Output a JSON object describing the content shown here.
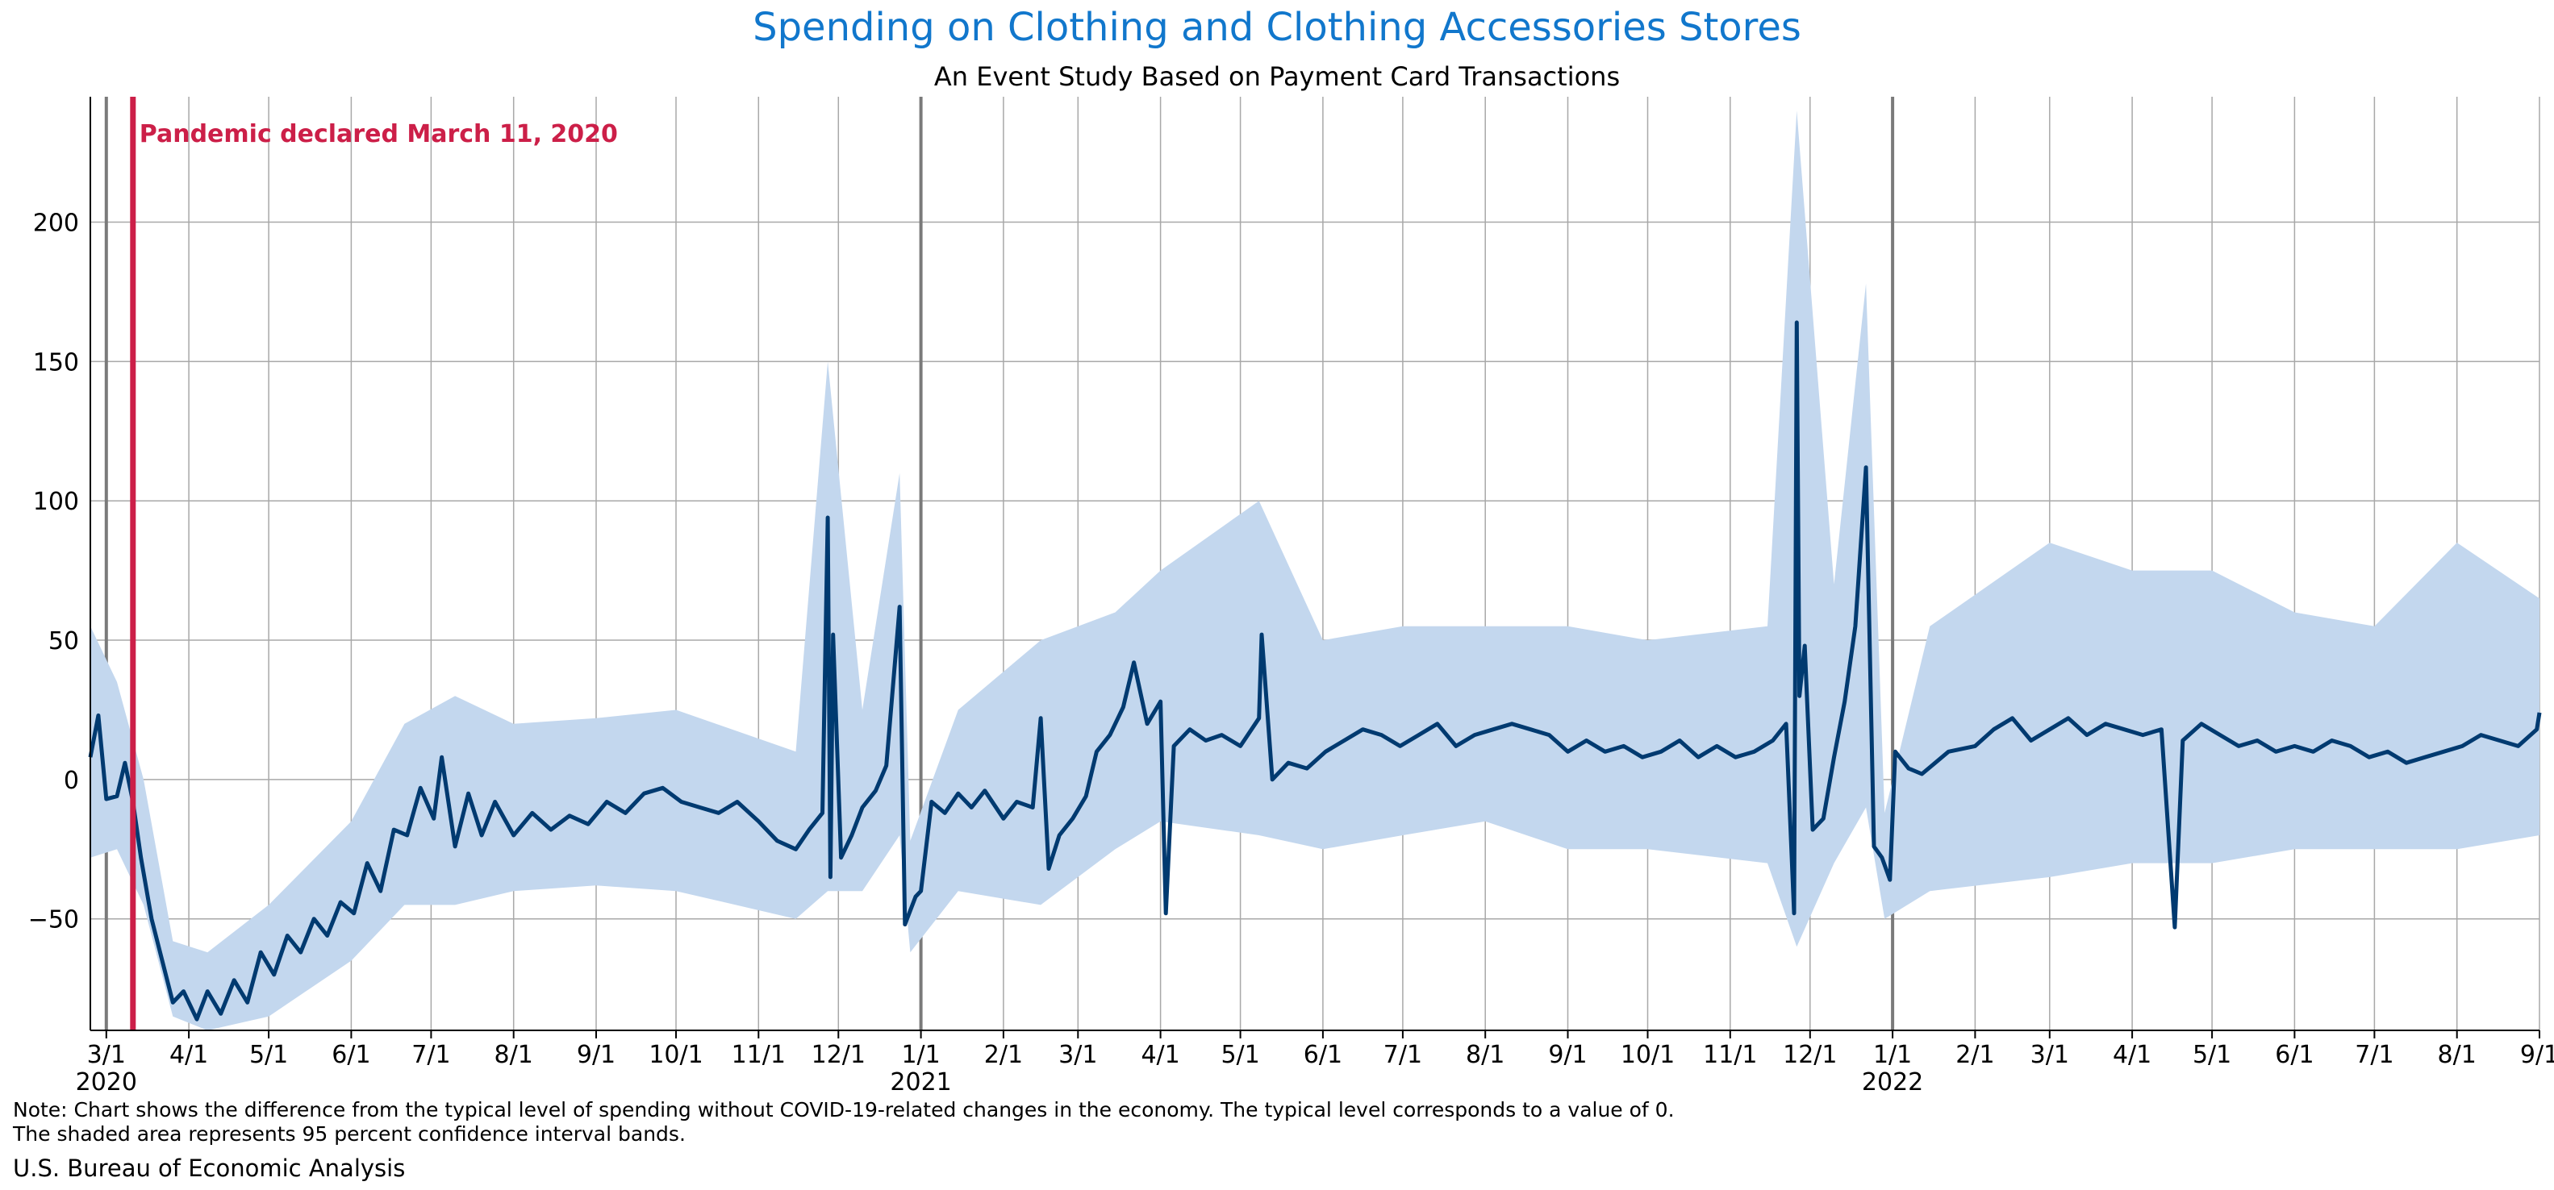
{
  "chart_data": {
    "type": "line",
    "title": "Spending on Clothing and Clothing Accessories Stores",
    "subtitle": "An Event Study Based on Payment Card Transactions",
    "xlabel": "",
    "ylabel": "",
    "x_range": [
      "2020-02-24",
      "2022-09-01"
    ],
    "ylim": [
      -90,
      245
    ],
    "y_ticks": [
      -50,
      0,
      50,
      100,
      150,
      200
    ],
    "grid": true,
    "legend": "none",
    "x_ticks": [
      {
        "date": "2020-03-01",
        "label": "3/1",
        "year": "2020"
      },
      {
        "date": "2020-04-01",
        "label": "4/1"
      },
      {
        "date": "2020-05-01",
        "label": "5/1"
      },
      {
        "date": "2020-06-01",
        "label": "6/1"
      },
      {
        "date": "2020-07-01",
        "label": "7/1"
      },
      {
        "date": "2020-08-01",
        "label": "8/1"
      },
      {
        "date": "2020-09-01",
        "label": "9/1"
      },
      {
        "date": "2020-10-01",
        "label": "10/1"
      },
      {
        "date": "2020-11-01",
        "label": "11/1"
      },
      {
        "date": "2020-12-01",
        "label": "12/1"
      },
      {
        "date": "2021-01-01",
        "label": "1/1",
        "year": "2021"
      },
      {
        "date": "2021-02-01",
        "label": "2/1"
      },
      {
        "date": "2021-03-01",
        "label": "3/1"
      },
      {
        "date": "2021-04-01",
        "label": "4/1"
      },
      {
        "date": "2021-05-01",
        "label": "5/1"
      },
      {
        "date": "2021-06-01",
        "label": "6/1"
      },
      {
        "date": "2021-07-01",
        "label": "7/1"
      },
      {
        "date": "2021-08-01",
        "label": "8/1"
      },
      {
        "date": "2021-09-01",
        "label": "9/1"
      },
      {
        "date": "2021-10-01",
        "label": "10/1"
      },
      {
        "date": "2021-11-01",
        "label": "11/1"
      },
      {
        "date": "2021-12-01",
        "label": "12/1"
      },
      {
        "date": "2022-01-01",
        "label": "1/1",
        "year": "2022"
      },
      {
        "date": "2022-02-01",
        "label": "2/1"
      },
      {
        "date": "2022-03-01",
        "label": "3/1"
      },
      {
        "date": "2022-04-01",
        "label": "4/1"
      },
      {
        "date": "2022-05-01",
        "label": "5/1"
      },
      {
        "date": "2022-06-01",
        "label": "6/1"
      },
      {
        "date": "2022-07-01",
        "label": "7/1"
      },
      {
        "date": "2022-08-01",
        "label": "8/1"
      },
      {
        "date": "2022-09-01",
        "label": "9/1"
      }
    ],
    "annotation": {
      "date": "2020-03-11",
      "text": "Pandemic declared March 11, 2020"
    },
    "series": [
      {
        "type": "line",
        "points": [
          [
            "2020-02-24",
            8
          ],
          [
            "2020-02-27",
            23
          ],
          [
            "2020-03-01",
            -7
          ],
          [
            "2020-03-05",
            -6
          ],
          [
            "2020-03-08",
            6
          ],
          [
            "2020-03-11",
            -8
          ],
          [
            "2020-03-14",
            -28
          ],
          [
            "2020-03-18",
            -50
          ],
          [
            "2020-03-22",
            -65
          ],
          [
            "2020-03-26",
            -80
          ],
          [
            "2020-03-30",
            -76
          ],
          [
            "2020-04-04",
            -86
          ],
          [
            "2020-04-08",
            -76
          ],
          [
            "2020-04-13",
            -84
          ],
          [
            "2020-04-18",
            -72
          ],
          [
            "2020-04-23",
            -80
          ],
          [
            "2020-04-28",
            -62
          ],
          [
            "2020-05-03",
            -70
          ],
          [
            "2020-05-08",
            -56
          ],
          [
            "2020-05-13",
            -62
          ],
          [
            "2020-05-18",
            -50
          ],
          [
            "2020-05-23",
            -56
          ],
          [
            "2020-05-28",
            -44
          ],
          [
            "2020-06-02",
            -48
          ],
          [
            "2020-06-07",
            -30
          ],
          [
            "2020-06-12",
            -40
          ],
          [
            "2020-06-17",
            -18
          ],
          [
            "2020-06-22",
            -20
          ],
          [
            "2020-06-27",
            -3
          ],
          [
            "2020-07-02",
            -14
          ],
          [
            "2020-07-05",
            8
          ],
          [
            "2020-07-10",
            -24
          ],
          [
            "2020-07-15",
            -5
          ],
          [
            "2020-07-20",
            -20
          ],
          [
            "2020-07-25",
            -8
          ],
          [
            "2020-08-01",
            -20
          ],
          [
            "2020-08-08",
            -12
          ],
          [
            "2020-08-15",
            -18
          ],
          [
            "2020-08-22",
            -13
          ],
          [
            "2020-08-29",
            -16
          ],
          [
            "2020-09-05",
            -8
          ],
          [
            "2020-09-12",
            -12
          ],
          [
            "2020-09-19",
            -5
          ],
          [
            "2020-09-26",
            -3
          ],
          [
            "2020-10-03",
            -8
          ],
          [
            "2020-10-10",
            -10
          ],
          [
            "2020-10-17",
            -12
          ],
          [
            "2020-10-24",
            -8
          ],
          [
            "2020-11-01",
            -15
          ],
          [
            "2020-11-08",
            -22
          ],
          [
            "2020-11-15",
            -25
          ],
          [
            "2020-11-20",
            -18
          ],
          [
            "2020-11-25",
            -12
          ],
          [
            "2020-11-27",
            94
          ],
          [
            "2020-11-28",
            -35
          ],
          [
            "2020-11-29",
            52
          ],
          [
            "2020-12-02",
            -28
          ],
          [
            "2020-12-06",
            -20
          ],
          [
            "2020-12-10",
            -10
          ],
          [
            "2020-12-15",
            -4
          ],
          [
            "2020-12-19",
            5
          ],
          [
            "2020-12-24",
            62
          ],
          [
            "2020-12-26",
            -52
          ],
          [
            "2020-12-30",
            -42
          ],
          [
            "2021-01-01",
            -40
          ],
          [
            "2021-01-05",
            -8
          ],
          [
            "2021-01-10",
            -12
          ],
          [
            "2021-01-15",
            -5
          ],
          [
            "2021-01-20",
            -10
          ],
          [
            "2021-01-25",
            -4
          ],
          [
            "2021-02-01",
            -14
          ],
          [
            "2021-02-06",
            -8
          ],
          [
            "2021-02-12",
            -10
          ],
          [
            "2021-02-15",
            22
          ],
          [
            "2021-02-18",
            -32
          ],
          [
            "2021-02-22",
            -20
          ],
          [
            "2021-02-27",
            -14
          ],
          [
            "2021-03-04",
            -6
          ],
          [
            "2021-03-08",
            10
          ],
          [
            "2021-03-13",
            16
          ],
          [
            "2021-03-18",
            26
          ],
          [
            "2021-03-22",
            42
          ],
          [
            "2021-03-27",
            20
          ],
          [
            "2021-04-01",
            28
          ],
          [
            "2021-04-03",
            -48
          ],
          [
            "2021-04-06",
            12
          ],
          [
            "2021-04-12",
            18
          ],
          [
            "2021-04-18",
            14
          ],
          [
            "2021-04-24",
            16
          ],
          [
            "2021-05-01",
            12
          ],
          [
            "2021-05-08",
            22
          ],
          [
            "2021-05-09",
            52
          ],
          [
            "2021-05-13",
            0
          ],
          [
            "2021-05-19",
            6
          ],
          [
            "2021-05-26",
            4
          ],
          [
            "2021-06-02",
            10
          ],
          [
            "2021-06-09",
            14
          ],
          [
            "2021-06-16",
            18
          ],
          [
            "2021-06-23",
            16
          ],
          [
            "2021-06-30",
            12
          ],
          [
            "2021-07-07",
            16
          ],
          [
            "2021-07-14",
            20
          ],
          [
            "2021-07-21",
            12
          ],
          [
            "2021-07-28",
            16
          ],
          [
            "2021-08-04",
            18
          ],
          [
            "2021-08-11",
            20
          ],
          [
            "2021-08-18",
            18
          ],
          [
            "2021-08-25",
            16
          ],
          [
            "2021-09-01",
            10
          ],
          [
            "2021-09-08",
            14
          ],
          [
            "2021-09-15",
            10
          ],
          [
            "2021-09-22",
            12
          ],
          [
            "2021-09-29",
            8
          ],
          [
            "2021-10-06",
            10
          ],
          [
            "2021-10-13",
            14
          ],
          [
            "2021-10-20",
            8
          ],
          [
            "2021-10-27",
            12
          ],
          [
            "2021-11-03",
            8
          ],
          [
            "2021-11-10",
            10
          ],
          [
            "2021-11-17",
            14
          ],
          [
            "2021-11-22",
            20
          ],
          [
            "2021-11-25",
            -48
          ],
          [
            "2021-11-26",
            164
          ],
          [
            "2021-11-27",
            30
          ],
          [
            "2021-11-29",
            48
          ],
          [
            "2021-12-02",
            -18
          ],
          [
            "2021-12-06",
            -14
          ],
          [
            "2021-12-10",
            8
          ],
          [
            "2021-12-14",
            28
          ],
          [
            "2021-12-18",
            55
          ],
          [
            "2021-12-22",
            112
          ],
          [
            "2021-12-25",
            -24
          ],
          [
            "2021-12-28",
            -28
          ],
          [
            "2021-12-31",
            -36
          ],
          [
            "2022-01-02",
            10
          ],
          [
            "2022-01-07",
            4
          ],
          [
            "2022-01-12",
            2
          ],
          [
            "2022-01-17",
            6
          ],
          [
            "2022-01-22",
            10
          ],
          [
            "2022-02-01",
            12
          ],
          [
            "2022-02-08",
            18
          ],
          [
            "2022-02-15",
            22
          ],
          [
            "2022-02-22",
            14
          ],
          [
            "2022-03-01",
            18
          ],
          [
            "2022-03-08",
            22
          ],
          [
            "2022-03-15",
            16
          ],
          [
            "2022-03-22",
            20
          ],
          [
            "2022-03-29",
            18
          ],
          [
            "2022-04-05",
            16
          ],
          [
            "2022-04-12",
            18
          ],
          [
            "2022-04-17",
            -53
          ],
          [
            "2022-04-20",
            14
          ],
          [
            "2022-04-27",
            20
          ],
          [
            "2022-05-04",
            16
          ],
          [
            "2022-05-11",
            12
          ],
          [
            "2022-05-18",
            14
          ],
          [
            "2022-05-25",
            10
          ],
          [
            "2022-06-01",
            12
          ],
          [
            "2022-06-08",
            10
          ],
          [
            "2022-06-15",
            14
          ],
          [
            "2022-06-22",
            12
          ],
          [
            "2022-06-29",
            8
          ],
          [
            "2022-07-06",
            10
          ],
          [
            "2022-07-13",
            6
          ],
          [
            "2022-07-20",
            8
          ],
          [
            "2022-07-27",
            10
          ],
          [
            "2022-08-03",
            12
          ],
          [
            "2022-08-10",
            16
          ],
          [
            "2022-08-17",
            14
          ],
          [
            "2022-08-24",
            12
          ],
          [
            "2022-08-31",
            18
          ],
          [
            "2022-09-01",
            24
          ]
        ],
        "color": "#003a70"
      }
    ],
    "confidence_band": {
      "color": "#c3d7ee",
      "points": [
        [
          "2020-02-24",
          -28,
          55
        ],
        [
          "2020-03-05",
          -25,
          35
        ],
        [
          "2020-03-15",
          -45,
          0
        ],
        [
          "2020-03-26",
          -85,
          -58
        ],
        [
          "2020-04-08",
          -90,
          -62
        ],
        [
          "2020-05-01",
          -85,
          -45
        ],
        [
          "2020-06-01",
          -65,
          -15
        ],
        [
          "2020-06-21",
          -45,
          20
        ],
        [
          "2020-07-10",
          -45,
          30
        ],
        [
          "2020-08-01",
          -40,
          20
        ],
        [
          "2020-09-01",
          -38,
          22
        ],
        [
          "2020-10-01",
          -40,
          25
        ],
        [
          "2020-11-15",
          -50,
          10
        ],
        [
          "2020-11-27",
          -40,
          150
        ],
        [
          "2020-12-10",
          -40,
          25
        ],
        [
          "2020-12-24",
          -20,
          110
        ],
        [
          "2020-12-28",
          -62,
          -22
        ],
        [
          "2021-01-15",
          -40,
          25
        ],
        [
          "2021-02-15",
          -45,
          50
        ],
        [
          "2021-03-15",
          -25,
          60
        ],
        [
          "2021-04-01",
          -15,
          75
        ],
        [
          "2021-05-08",
          -20,
          100
        ],
        [
          "2021-06-01",
          -25,
          50
        ],
        [
          "2021-07-01",
          -20,
          55
        ],
        [
          "2021-08-01",
          -15,
          55
        ],
        [
          "2021-09-01",
          -25,
          55
        ],
        [
          "2021-10-01",
          -25,
          50
        ],
        [
          "2021-11-15",
          -30,
          55
        ],
        [
          "2021-11-26",
          -60,
          240
        ],
        [
          "2021-12-10",
          -30,
          70
        ],
        [
          "2021-12-22",
          -10,
          178
        ],
        [
          "2021-12-29",
          -50,
          -12
        ],
        [
          "2022-01-15",
          -40,
          55
        ],
        [
          "2022-03-01",
          -35,
          85
        ],
        [
          "2022-04-01",
          -30,
          75
        ],
        [
          "2022-05-01",
          -30,
          75
        ],
        [
          "2022-06-01",
          -25,
          60
        ],
        [
          "2022-07-01",
          -25,
          55
        ],
        [
          "2022-08-01",
          -25,
          85
        ],
        [
          "2022-09-01",
          -20,
          65
        ]
      ]
    }
  },
  "footer": {
    "note_line_1": "Note: Chart shows the difference from the typical level of spending without COVID-19-related changes in the economy. The typical level corresponds to a value of 0.",
    "note_line_2": "The shaded area represents 95 percent confidence interval bands.",
    "source": "U.S. Bureau of Economic Analysis"
  },
  "colors": {
    "title": "#1177cc",
    "annotation": "#cc1f48",
    "grid": "#a8a8a8",
    "year_divider": "#7a7a7a"
  }
}
